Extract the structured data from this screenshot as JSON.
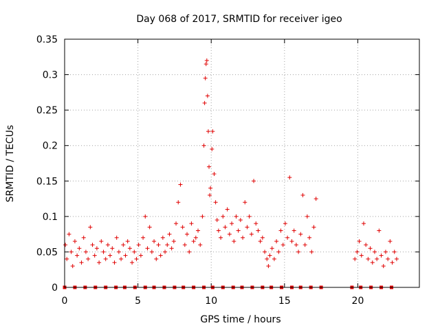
{
  "chart_data": {
    "type": "scatter",
    "title": "Day 068 of 2017, SRMTID for receiver igeo",
    "xlabel": "GPS time / hours",
    "ylabel": "SRMTID / TECUs",
    "xlim": [
      0,
      24.2
    ],
    "ylim": [
      0,
      0.35
    ],
    "xticks": [
      0,
      5,
      10,
      15,
      20
    ],
    "xtick_labels": [
      "0",
      "5",
      "10",
      "15",
      "20"
    ],
    "yticks": [
      0,
      0.05,
      0.1,
      0.15,
      0.2,
      0.25,
      0.3,
      0.35
    ],
    "ytick_labels": [
      "0",
      "0.05",
      "0.1",
      "0.15",
      "0.2",
      "0.25",
      "0.3",
      "0.35"
    ],
    "grid": true,
    "series": [
      {
        "name": "SRMTID",
        "color": "#e00000",
        "marker": "plus",
        "points": [
          [
            0.05,
            0.06
          ],
          [
            0.15,
            0.04
          ],
          [
            0.3,
            0.075
          ],
          [
            0.45,
            0.05
          ],
          [
            0.55,
            0.03
          ],
          [
            0.7,
            0.065
          ],
          [
            0.85,
            0.045
          ],
          [
            1.0,
            0.055
          ],
          [
            1.15,
            0.035
          ],
          [
            1.3,
            0.07
          ],
          [
            1.45,
            0.05
          ],
          [
            1.6,
            0.04
          ],
          [
            1.75,
            0.085
          ],
          [
            1.9,
            0.06
          ],
          [
            2.05,
            0.045
          ],
          [
            2.2,
            0.055
          ],
          [
            2.35,
            0.035
          ],
          [
            2.5,
            0.065
          ],
          [
            2.65,
            0.05
          ],
          [
            2.8,
            0.04
          ],
          [
            2.95,
            0.06
          ],
          [
            3.1,
            0.045
          ],
          [
            3.25,
            0.055
          ],
          [
            3.4,
            0.035
          ],
          [
            3.55,
            0.07
          ],
          [
            3.7,
            0.05
          ],
          [
            3.85,
            0.04
          ],
          [
            4.0,
            0.06
          ],
          [
            4.15,
            0.045
          ],
          [
            4.3,
            0.065
          ],
          [
            4.45,
            0.055
          ],
          [
            4.6,
            0.035
          ],
          [
            4.75,
            0.05
          ],
          [
            4.9,
            0.04
          ],
          [
            5.05,
            0.06
          ],
          [
            5.2,
            0.045
          ],
          [
            5.35,
            0.07
          ],
          [
            5.5,
            0.1
          ],
          [
            5.65,
            0.055
          ],
          [
            5.8,
            0.085
          ],
          [
            5.95,
            0.05
          ],
          [
            6.1,
            0.065
          ],
          [
            6.25,
            0.04
          ],
          [
            6.4,
            0.06
          ],
          [
            6.55,
            0.045
          ],
          [
            6.7,
            0.07
          ],
          [
            6.85,
            0.05
          ],
          [
            7.0,
            0.06
          ],
          [
            7.15,
            0.075
          ],
          [
            7.3,
            0.055
          ],
          [
            7.45,
            0.065
          ],
          [
            7.6,
            0.09
          ],
          [
            7.75,
            0.12
          ],
          [
            7.9,
            0.145
          ],
          [
            8.05,
            0.085
          ],
          [
            8.2,
            0.06
          ],
          [
            8.35,
            0.075
          ],
          [
            8.5,
            0.05
          ],
          [
            8.65,
            0.09
          ],
          [
            8.8,
            0.065
          ],
          [
            8.95,
            0.07
          ],
          [
            9.1,
            0.08
          ],
          [
            9.25,
            0.06
          ],
          [
            9.4,
            0.1
          ],
          [
            9.5,
            0.2
          ],
          [
            9.55,
            0.26
          ],
          [
            9.6,
            0.295
          ],
          [
            9.65,
            0.315
          ],
          [
            9.7,
            0.32
          ],
          [
            9.75,
            0.27
          ],
          [
            9.8,
            0.22
          ],
          [
            9.85,
            0.17
          ],
          [
            9.9,
            0.13
          ],
          [
            9.95,
            0.14
          ],
          [
            10.05,
            0.195
          ],
          [
            10.1,
            0.22
          ],
          [
            10.2,
            0.16
          ],
          [
            10.3,
            0.12
          ],
          [
            10.4,
            0.095
          ],
          [
            10.5,
            0.08
          ],
          [
            10.65,
            0.07
          ],
          [
            10.8,
            0.1
          ],
          [
            10.95,
            0.085
          ],
          [
            11.1,
            0.11
          ],
          [
            11.25,
            0.075
          ],
          [
            11.4,
            0.09
          ],
          [
            11.55,
            0.065
          ],
          [
            11.7,
            0.1
          ],
          [
            11.85,
            0.08
          ],
          [
            12.0,
            0.095
          ],
          [
            12.15,
            0.07
          ],
          [
            12.3,
            0.12
          ],
          [
            12.45,
            0.085
          ],
          [
            12.6,
            0.1
          ],
          [
            12.75,
            0.075
          ],
          [
            12.9,
            0.15
          ],
          [
            13.05,
            0.09
          ],
          [
            13.2,
            0.08
          ],
          [
            13.35,
            0.065
          ],
          [
            13.5,
            0.07
          ],
          [
            13.65,
            0.05
          ],
          [
            13.8,
            0.04
          ],
          [
            13.9,
            0.03
          ],
          [
            14.0,
            0.045
          ],
          [
            14.15,
            0.055
          ],
          [
            14.3,
            0.04
          ],
          [
            14.45,
            0.065
          ],
          [
            14.6,
            0.05
          ],
          [
            14.75,
            0.08
          ],
          [
            14.9,
            0.06
          ],
          [
            15.05,
            0.09
          ],
          [
            15.2,
            0.07
          ],
          [
            15.35,
            0.155
          ],
          [
            15.5,
            0.065
          ],
          [
            15.65,
            0.08
          ],
          [
            15.8,
            0.06
          ],
          [
            15.95,
            0.05
          ],
          [
            16.1,
            0.075
          ],
          [
            16.25,
            0.13
          ],
          [
            16.4,
            0.06
          ],
          [
            16.55,
            0.1
          ],
          [
            16.7,
            0.07
          ],
          [
            16.85,
            0.05
          ],
          [
            17.0,
            0.085
          ],
          [
            17.15,
            0.125
          ],
          [
            19.8,
            0.04
          ],
          [
            19.95,
            0.05
          ],
          [
            20.1,
            0.065
          ],
          [
            20.25,
            0.045
          ],
          [
            20.4,
            0.09
          ],
          [
            20.55,
            0.06
          ],
          [
            20.7,
            0.04
          ],
          [
            20.85,
            0.055
          ],
          [
            21.0,
            0.035
          ],
          [
            21.15,
            0.05
          ],
          [
            21.3,
            0.04
          ],
          [
            21.45,
            0.08
          ],
          [
            21.6,
            0.045
          ],
          [
            21.75,
            0.03
          ],
          [
            21.9,
            0.05
          ],
          [
            22.05,
            0.04
          ],
          [
            22.2,
            0.065
          ],
          [
            22.35,
            0.035
          ],
          [
            22.5,
            0.05
          ],
          [
            22.65,
            0.04
          ]
        ],
        "zero_points_x": [
          0,
          0.7,
          1.4,
          2.1,
          2.8,
          3.5,
          4.1,
          4.8,
          5.5,
          6.1,
          6.8,
          7.5,
          8.1,
          8.8,
          9.5,
          10.1,
          10.8,
          11.5,
          12.1,
          12.8,
          13.5,
          14.1,
          14.8,
          15.5,
          16.1,
          16.8,
          17.5,
          19.6,
          20.2,
          20.9,
          21.6,
          22.3
        ]
      }
    ]
  }
}
